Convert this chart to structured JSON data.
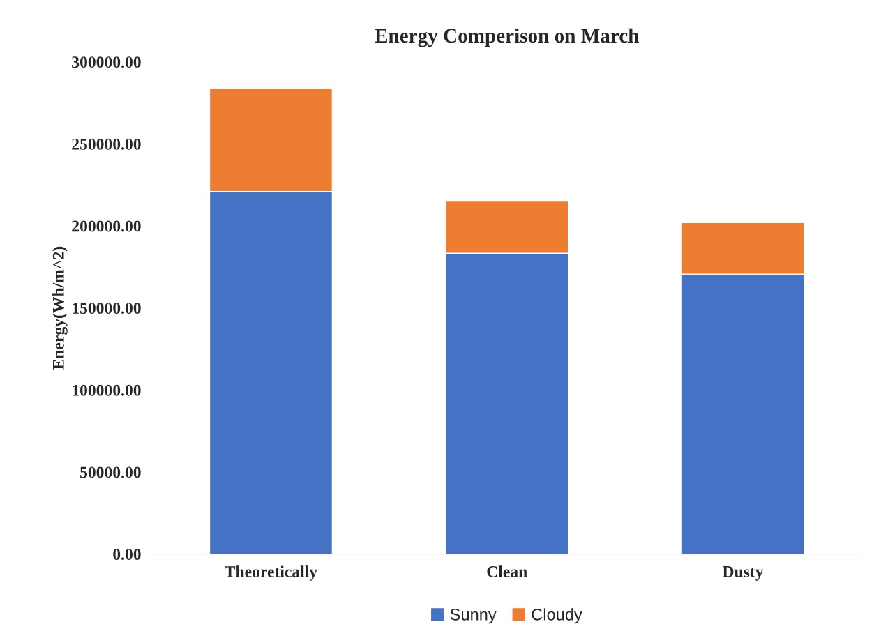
{
  "chart_data": {
    "type": "bar",
    "stacked": true,
    "title": "Energy Comperison on March",
    "ylabel": "Energy(Wh/m^2)",
    "categories": [
      "Theoretically",
      "Clean",
      "Dusty"
    ],
    "series": [
      {
        "name": "Sunny",
        "color": "#4472c4",
        "values": [
          221000,
          183300,
          170600
        ]
      },
      {
        "name": "Cloudy",
        "color": "#ed7d31",
        "values": [
          62900,
          32200,
          31400
        ]
      }
    ],
    "ylim": [
      0,
      300000
    ],
    "yticks": [
      {
        "value": 0,
        "label": "0.00"
      },
      {
        "value": 50000,
        "label": "50000.00"
      },
      {
        "value": 100000,
        "label": "100000.00"
      },
      {
        "value": 150000,
        "label": "150000.00"
      },
      {
        "value": 200000,
        "label": "200000.00"
      },
      {
        "value": 250000,
        "label": "250000.00"
      },
      {
        "value": 300000,
        "label": "300000.00"
      }
    ],
    "grid": false,
    "legend": "bottom"
  }
}
